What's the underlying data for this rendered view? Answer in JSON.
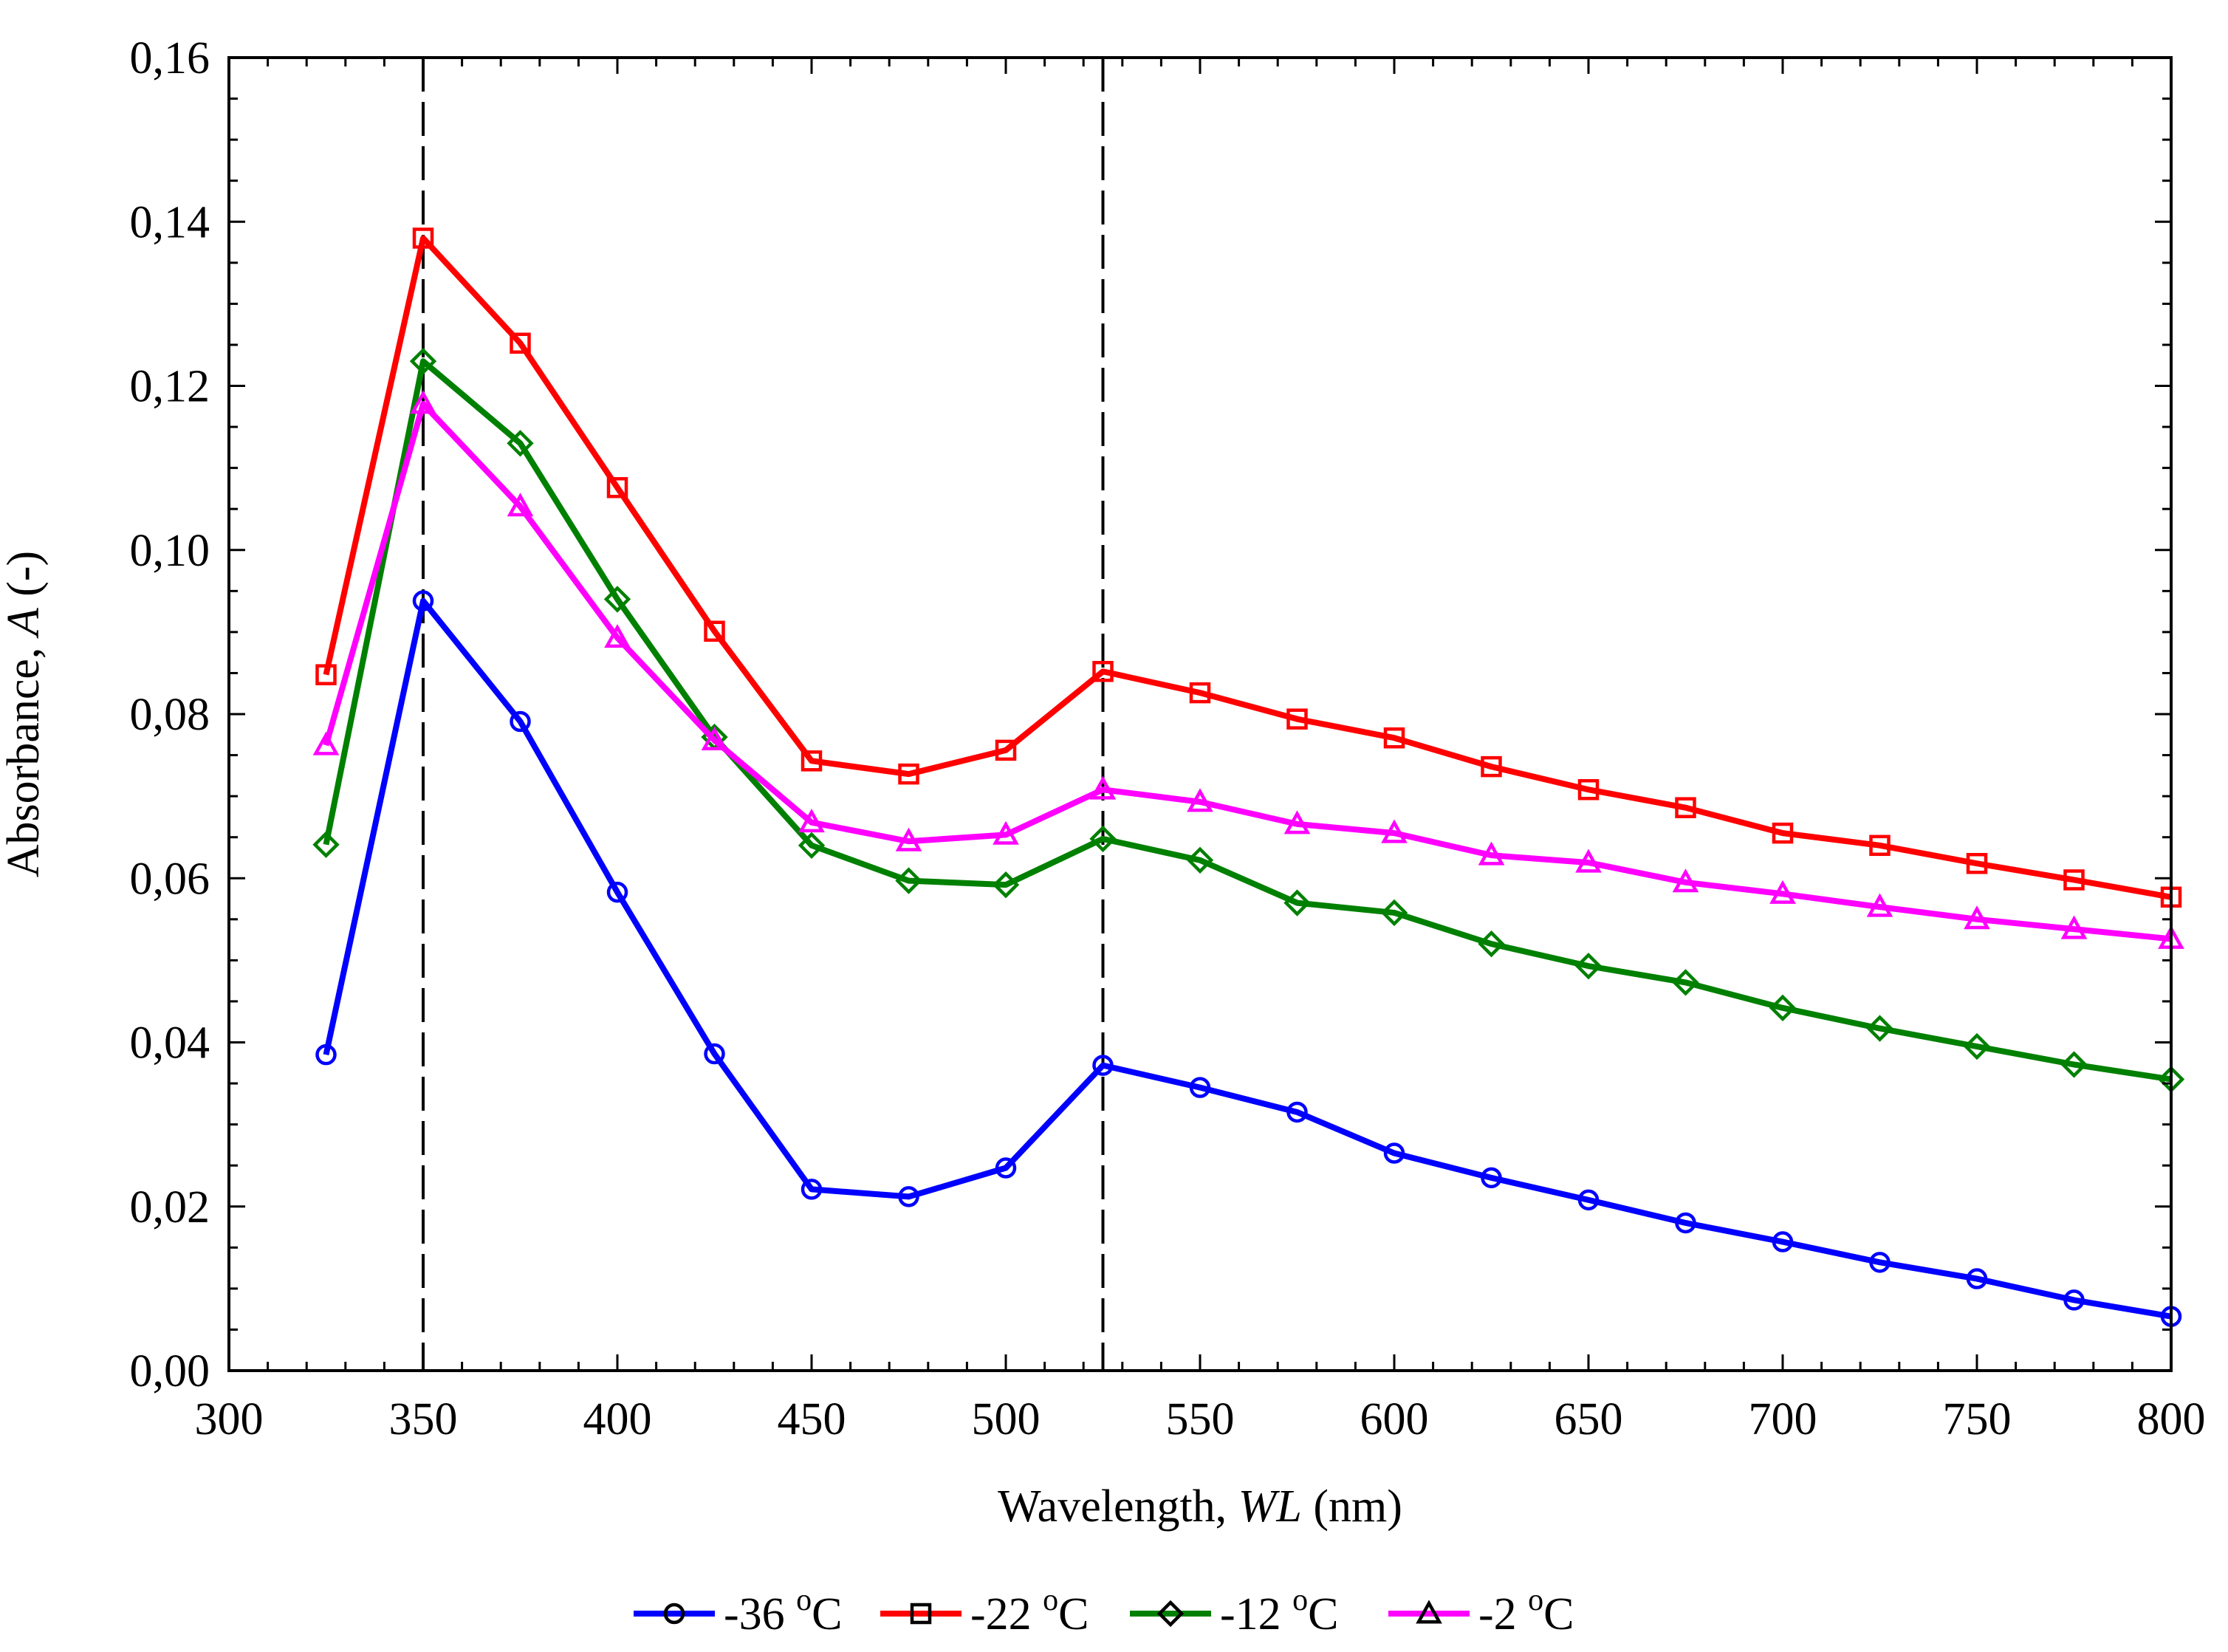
{
  "chart_data": {
    "type": "line",
    "title": "",
    "xlabel_prefix": "Wavelength, ",
    "xlabel_italic": "WL",
    "xlabel_suffix": " (nm)",
    "ylabel_prefix": "Absorbance, ",
    "ylabel_italic": "A",
    "ylabel_suffix": " (-)",
    "xlim": [
      300,
      800
    ],
    "ylim": [
      0,
      0.16
    ],
    "x_ticks": [
      300,
      350,
      400,
      450,
      500,
      550,
      600,
      650,
      700,
      750,
      800
    ],
    "x_tick_labels": [
      "300",
      "350",
      "400",
      "450",
      "500",
      "550",
      "600",
      "650",
      "700",
      "750",
      "800"
    ],
    "y_ticks": [
      0,
      0.02,
      0.04,
      0.06,
      0.08,
      0.1,
      0.12,
      0.14,
      0.16
    ],
    "y_tick_labels": [
      "0,00",
      "0,02",
      "0,04",
      "0,06",
      "0,08",
      "0,10",
      "0,12",
      "0,14",
      "0,16"
    ],
    "grid": false,
    "vlines": [
      350,
      525
    ],
    "legend_position": "bottom-center",
    "x": [
      325,
      350,
      375,
      400,
      425,
      450,
      475,
      500,
      525,
      550,
      575,
      600,
      625,
      650,
      675,
      700,
      725,
      750,
      775,
      800
    ],
    "series": [
      {
        "name": "-36 °C",
        "label_main": "-36 ",
        "label_sup": "o",
        "label_unit": "C",
        "color": "#0000ff",
        "marker": "circle",
        "values": [
          0.0385,
          0.0938,
          0.0791,
          0.0583,
          0.0386,
          0.0221,
          0.0212,
          0.0247,
          0.0372,
          0.0345,
          0.0315,
          0.0265,
          0.0235,
          0.0208,
          0.018,
          0.0157,
          0.0132,
          0.0112,
          0.0086,
          0.0066
        ]
      },
      {
        "name": "-22 °C",
        "label_main": "-22 ",
        "label_sup": "o",
        "label_unit": "C",
        "color": "#ff0000",
        "marker": "square",
        "values": [
          0.0848,
          0.138,
          0.1252,
          0.1076,
          0.0901,
          0.0743,
          0.0727,
          0.0756,
          0.0852,
          0.0826,
          0.0794,
          0.0771,
          0.0736,
          0.0708,
          0.0686,
          0.0655,
          0.064,
          0.0618,
          0.0598,
          0.0577
        ]
      },
      {
        "name": "-12 °C",
        "label_main": "-12 ",
        "label_sup": "o",
        "label_unit": "C",
        "color": "#008000",
        "marker": "diamond",
        "values": [
          0.0641,
          0.123,
          0.113,
          0.094,
          0.0772,
          0.064,
          0.0597,
          0.0592,
          0.0648,
          0.0622,
          0.057,
          0.0558,
          0.052,
          0.0493,
          0.0473,
          0.0442,
          0.0417,
          0.0395,
          0.0373,
          0.0355
        ]
      },
      {
        "name": "-2 °C",
        "label_main": "-2 ",
        "label_sup": "o",
        "label_unit": "C",
        "color": "#ff00ff",
        "marker": "triangle",
        "values": [
          0.0762,
          0.1178,
          0.1053,
          0.0893,
          0.0768,
          0.0668,
          0.0645,
          0.0653,
          0.0708,
          0.0693,
          0.0666,
          0.0655,
          0.0628,
          0.0619,
          0.0595,
          0.0581,
          0.0565,
          0.055,
          0.0538,
          0.0526
        ]
      }
    ]
  }
}
